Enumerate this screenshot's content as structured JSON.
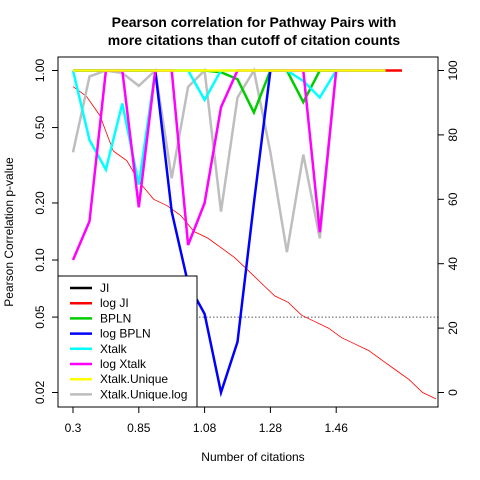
{
  "chart_data": {
    "type": "line",
    "title_line1": "Pearson correlation for Pathway Pairs with",
    "title_line2": "more citations than cutoff of citation counts",
    "xlabel": "Number of citations",
    "ylabel": "Pearson Correlation p-value",
    "y_scale": "log",
    "ylim": [
      0.018,
      1.1
    ],
    "y_ticks": [
      0.02,
      0.05,
      0.1,
      0.2,
      0.5,
      1.0
    ],
    "y_tick_labels": [
      "0.02",
      "0.05",
      "0.10",
      "0.20",
      "0.50",
      "1.00"
    ],
    "x_tick_labels": [
      "0.3",
      "0.85",
      "1.08",
      "1.28",
      "1.46"
    ],
    "x_tick_index": [
      0,
      4,
      8,
      12,
      16
    ],
    "n_points": 21,
    "y2_ticks": [
      0,
      20,
      40,
      60,
      80,
      100
    ],
    "y2lim": [
      -5,
      107
    ],
    "reference_line": 0.05,
    "grid": false,
    "legend_position": "bottom-left",
    "series": [
      {
        "name": "JI",
        "color": "#000000",
        "width": 2.5,
        "axis": "left",
        "values": [
          null,
          null,
          null,
          null,
          null,
          null,
          null,
          null,
          null,
          null,
          null,
          null,
          null,
          null,
          null,
          null,
          null,
          null,
          null,
          null,
          null
        ]
      },
      {
        "name": "log JI",
        "color": "#ff0000",
        "width": 2.5,
        "axis": "left",
        "values": [
          null,
          null,
          null,
          null,
          null,
          null,
          null,
          null,
          null,
          null,
          null,
          null,
          null,
          null,
          null,
          null,
          null,
          null,
          null,
          1.0,
          1.0
        ]
      },
      {
        "name": "BPLN",
        "color": "#00cd00",
        "width": 2.5,
        "axis": "left",
        "values": [
          1.0,
          1.0,
          1.0,
          1.0,
          1.0,
          1.0,
          1.0,
          1.0,
          1.0,
          0.98,
          0.9,
          0.6,
          1.0,
          1.0,
          0.68,
          1.0,
          1.0,
          1.0,
          1.0,
          1.0,
          null
        ]
      },
      {
        "name": "log BPLN",
        "color": "#0000ff",
        "width": 2.5,
        "axis": "left",
        "values": [
          1.0,
          1.0,
          1.0,
          1.0,
          1.0,
          1.0,
          0.18,
          0.075,
          0.052,
          0.02,
          0.037,
          0.2,
          1.0,
          1.0,
          1.0,
          1.0,
          1.0,
          1.0,
          1.0,
          1.0,
          null
        ]
      },
      {
        "name": "Xtalk",
        "color": "#00ffff",
        "width": 2.5,
        "axis": "left",
        "values": [
          1.0,
          0.43,
          0.3,
          0.67,
          0.25,
          1.0,
          1.0,
          1.0,
          0.7,
          1.0,
          1.0,
          1.0,
          1.0,
          1.0,
          0.88,
          0.72,
          1.0,
          1.0,
          1.0,
          1.0,
          null
        ]
      },
      {
        "name": "log Xtalk",
        "color": "#ff00ff",
        "width": 2.5,
        "axis": "left",
        "values": [
          0.1,
          0.16,
          1.0,
          1.0,
          0.19,
          1.0,
          1.0,
          0.12,
          0.2,
          0.64,
          1.0,
          1.0,
          1.0,
          1.0,
          1.0,
          0.14,
          1.0,
          1.0,
          1.0,
          1.0,
          null
        ]
      },
      {
        "name": "Xtalk.Unique",
        "color": "#ffff00",
        "width": 2.5,
        "axis": "left",
        "values": [
          1.0,
          1.0,
          1.0,
          1.0,
          1.0,
          1.0,
          1.0,
          1.0,
          1.0,
          1.0,
          1.0,
          1.0,
          1.0,
          1.0,
          1.0,
          1.0,
          1.0,
          1.0,
          1.0,
          1.0,
          null
        ]
      },
      {
        "name": "Xtalk.Unique.log",
        "color": "#bebebe",
        "width": 2.5,
        "axis": "left",
        "values": [
          0.37,
          0.93,
          1.0,
          0.97,
          0.83,
          1.0,
          0.27,
          0.82,
          1.0,
          0.18,
          0.72,
          1.0,
          0.37,
          0.11,
          0.36,
          0.13,
          1.0,
          1.0,
          1.0,
          1.0,
          null
        ]
      }
    ],
    "citation_line": {
      "color": "#ff0000",
      "width": 0.8,
      "axis": "right",
      "values": [
        95,
        92,
        86,
        75,
        72,
        65,
        60,
        58,
        55,
        50,
        48,
        45,
        42,
        38,
        34,
        30,
        28,
        24,
        22,
        20,
        17,
        15,
        13,
        10,
        7,
        4,
        0,
        -2
      ]
    }
  }
}
